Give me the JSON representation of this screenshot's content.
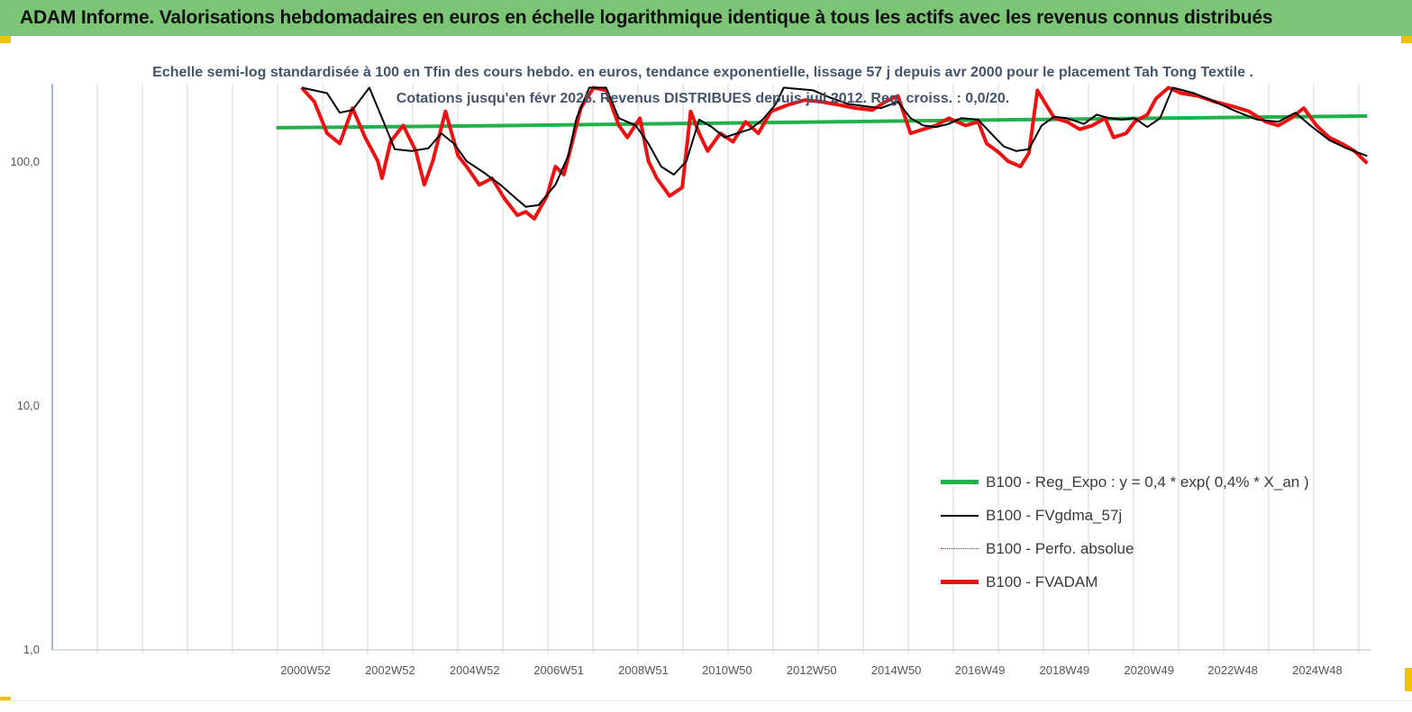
{
  "header": {
    "title": "ADAM Informe. Valorisations hebdomadaires en euros en échelle logarithmique identique à tous les actifs avec les revenus connus distribués"
  },
  "chart_data": {
    "type": "line",
    "title": "Echelle semi-log standardisée à 100 en Tfin des cours hebdo. en euros, tendance exponentielle, lissage 57 j depuis avr 2000 pour le placement Tah Tong Textile . Cotations jusqu'en févr 2026. Revenus DISTRIBUES depuis juil 2012. Reg. croiss. : 0,0/20.",
    "y_scale": "log",
    "ylim": [
      1,
      200
    ],
    "y_ticks": [
      {
        "value": 100,
        "label": "100,0"
      },
      {
        "value": 10,
        "label": "10,0"
      },
      {
        "value": 1,
        "label": "1,0"
      }
    ],
    "x_ticks": [
      "2000W52",
      "2002W52",
      "2004W52",
      "2006W51",
      "2008W51",
      "2010W50",
      "2012W50",
      "2014W50",
      "2016W49",
      "2018W49",
      "2020W49",
      "2022W48",
      "2024W48"
    ],
    "x_tick_years": [
      2000.99,
      2002.99,
      2004.99,
      2006.98,
      2008.98,
      2010.96,
      2012.96,
      2014.96,
      2016.94,
      2018.94,
      2020.94,
      2022.92,
      2024.92
    ],
    "xlim": [
      1995.0,
      2026.2
    ],
    "legend_position": "bottom-right",
    "series": [
      {
        "name": "B100 - Reg_Expo : y = 0,4 * exp( 0,4% *  X_an )",
        "color": "#22b04b",
        "style": "solid-thick",
        "points": [
          [
            2000.3,
            137
          ],
          [
            2006.0,
            140
          ],
          [
            2012.0,
            144
          ],
          [
            2018.0,
            148
          ],
          [
            2026.1,
            153
          ]
        ]
      },
      {
        "name": "B100 - FVgdma_57j",
        "color": "#000000",
        "style": "solid-thin",
        "points": [
          [
            2000.9,
            200
          ],
          [
            2001.5,
            190
          ],
          [
            2001.8,
            158
          ],
          [
            2002.1,
            162
          ],
          [
            2002.5,
            200
          ],
          [
            2002.8,
            150
          ],
          [
            2003.1,
            112
          ],
          [
            2003.5,
            110
          ],
          [
            2003.9,
            113
          ],
          [
            2004.2,
            130
          ],
          [
            2004.5,
            118
          ],
          [
            2004.8,
            100
          ],
          [
            2005.2,
            90
          ],
          [
            2005.6,
            80
          ],
          [
            2005.9,
            72
          ],
          [
            2006.2,
            65
          ],
          [
            2006.5,
            66
          ],
          [
            2006.9,
            80
          ],
          [
            2007.2,
            105
          ],
          [
            2007.4,
            150
          ],
          [
            2007.7,
            200
          ],
          [
            2008.1,
            200
          ],
          [
            2008.4,
            150
          ],
          [
            2008.8,
            140
          ],
          [
            2009.1,
            118
          ],
          [
            2009.4,
            95
          ],
          [
            2009.7,
            88
          ],
          [
            2010.0,
            100
          ],
          [
            2010.3,
            148
          ],
          [
            2010.6,
            138
          ],
          [
            2010.9,
            125
          ],
          [
            2011.2,
            130
          ],
          [
            2011.5,
            135
          ],
          [
            2011.8,
            148
          ],
          [
            2012.1,
            170
          ],
          [
            2012.3,
            200
          ],
          [
            2013.0,
            195
          ],
          [
            2013.4,
            182
          ],
          [
            2013.8,
            172
          ],
          [
            2014.2,
            168
          ],
          [
            2014.6,
            165
          ],
          [
            2015.0,
            175
          ],
          [
            2015.3,
            150
          ],
          [
            2015.6,
            140
          ],
          [
            2015.9,
            138
          ],
          [
            2016.2,
            142
          ],
          [
            2016.5,
            150
          ],
          [
            2016.9,
            148
          ],
          [
            2017.2,
            130
          ],
          [
            2017.5,
            115
          ],
          [
            2017.8,
            110
          ],
          [
            2018.1,
            112
          ],
          [
            2018.4,
            140
          ],
          [
            2018.7,
            152
          ],
          [
            2019.0,
            150
          ],
          [
            2019.4,
            142
          ],
          [
            2019.7,
            155
          ],
          [
            2020.0,
            150
          ],
          [
            2020.3,
            148
          ],
          [
            2020.6,
            150
          ],
          [
            2020.9,
            138
          ],
          [
            2021.2,
            150
          ],
          [
            2021.5,
            200
          ],
          [
            2022.0,
            190
          ],
          [
            2022.5,
            175
          ],
          [
            2023.0,
            160
          ],
          [
            2023.5,
            148
          ],
          [
            2024.0,
            145
          ],
          [
            2024.4,
            158
          ],
          [
            2024.8,
            138
          ],
          [
            2025.2,
            122
          ],
          [
            2025.6,
            113
          ],
          [
            2026.1,
            105
          ]
        ]
      },
      {
        "name": "B100 - Perfo. absolue",
        "color": "#e00000",
        "style": "dotted",
        "points": []
      },
      {
        "name": "B100 - FVADAM",
        "color": "#ee1111",
        "style": "solid-thick",
        "points": [
          [
            2000.9,
            200
          ],
          [
            2001.2,
            175
          ],
          [
            2001.5,
            130
          ],
          [
            2001.8,
            118
          ],
          [
            2002.1,
            165
          ],
          [
            2002.4,
            125
          ],
          [
            2002.7,
            100
          ],
          [
            2002.8,
            85
          ],
          [
            2003.0,
            120
          ],
          [
            2003.3,
            140
          ],
          [
            2003.6,
            110
          ],
          [
            2003.8,
            80
          ],
          [
            2004.0,
            100
          ],
          [
            2004.3,
            160
          ],
          [
            2004.6,
            105
          ],
          [
            2004.8,
            95
          ],
          [
            2005.1,
            80
          ],
          [
            2005.4,
            85
          ],
          [
            2005.7,
            70
          ],
          [
            2006.0,
            60
          ],
          [
            2006.2,
            62
          ],
          [
            2006.4,
            58
          ],
          [
            2006.7,
            72
          ],
          [
            2006.9,
            95
          ],
          [
            2007.1,
            88
          ],
          [
            2007.3,
            120
          ],
          [
            2007.5,
            165
          ],
          [
            2007.8,
            200
          ],
          [
            2008.1,
            195
          ],
          [
            2008.4,
            140
          ],
          [
            2008.6,
            125
          ],
          [
            2008.9,
            150
          ],
          [
            2009.1,
            100
          ],
          [
            2009.3,
            85
          ],
          [
            2009.6,
            72
          ],
          [
            2009.9,
            78
          ],
          [
            2010.1,
            160
          ],
          [
            2010.3,
            130
          ],
          [
            2010.5,
            110
          ],
          [
            2010.8,
            130
          ],
          [
            2011.1,
            120
          ],
          [
            2011.4,
            145
          ],
          [
            2011.7,
            130
          ],
          [
            2012.0,
            160
          ],
          [
            2012.4,
            170
          ],
          [
            2012.8,
            178
          ],
          [
            2013.2,
            175
          ],
          [
            2013.6,
            170
          ],
          [
            2014.0,
            165
          ],
          [
            2014.4,
            162
          ],
          [
            2014.7,
            175
          ],
          [
            2015.0,
            185
          ],
          [
            2015.3,
            130
          ],
          [
            2015.6,
            135
          ],
          [
            2015.9,
            140
          ],
          [
            2016.2,
            150
          ],
          [
            2016.6,
            140
          ],
          [
            2016.9,
            145
          ],
          [
            2017.1,
            118
          ],
          [
            2017.4,
            108
          ],
          [
            2017.6,
            100
          ],
          [
            2017.9,
            95
          ],
          [
            2018.1,
            108
          ],
          [
            2018.3,
            195
          ],
          [
            2018.7,
            150
          ],
          [
            2019.0,
            145
          ],
          [
            2019.3,
            135
          ],
          [
            2019.6,
            140
          ],
          [
            2019.9,
            150
          ],
          [
            2020.1,
            125
          ],
          [
            2020.4,
            130
          ],
          [
            2020.6,
            145
          ],
          [
            2020.9,
            155
          ],
          [
            2021.1,
            180
          ],
          [
            2021.4,
            200
          ],
          [
            2021.7,
            190
          ],
          [
            2022.1,
            185
          ],
          [
            2022.5,
            175
          ],
          [
            2022.9,
            168
          ],
          [
            2023.3,
            160
          ],
          [
            2023.7,
            145
          ],
          [
            2024.0,
            140
          ],
          [
            2024.3,
            150
          ],
          [
            2024.6,
            165
          ],
          [
            2024.9,
            140
          ],
          [
            2025.2,
            125
          ],
          [
            2025.5,
            118
          ],
          [
            2025.8,
            110
          ],
          [
            2026.1,
            98
          ]
        ]
      }
    ]
  }
}
